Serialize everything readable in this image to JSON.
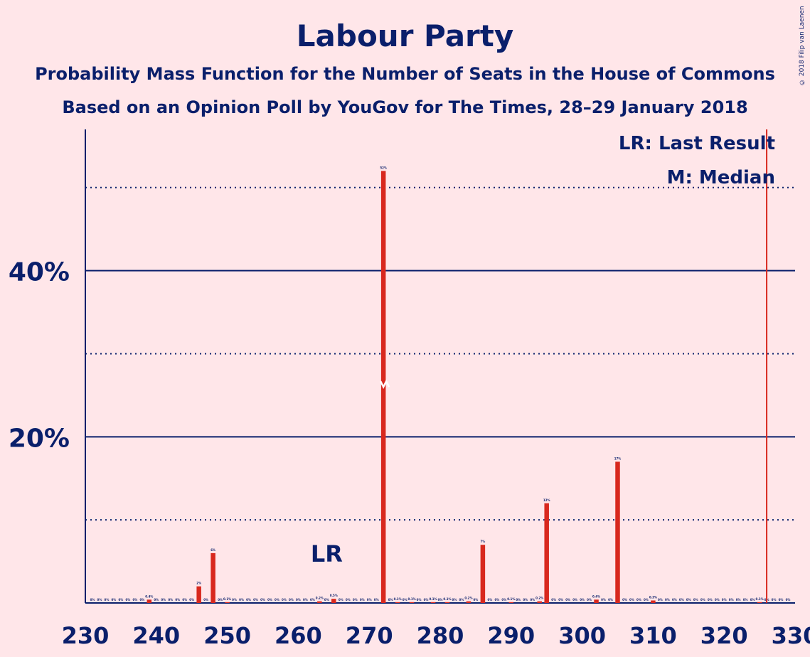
{
  "title": "Labour Party",
  "subtitle1": "Probability Mass Function for the Number of Seats in the House of Commons",
  "subtitle2": "Based on an Opinion Poll by YouGov for The Times, 28–29 January 2018",
  "copyright": "© 2018 Filip van Laenen",
  "legend": {
    "lr": "LR: Last Result",
    "m": "M: Median"
  },
  "colors": {
    "background": "#ffe6e9",
    "bar": "#d8281e",
    "axis": "#0a1f6b",
    "last_result_line": "#d8281e"
  },
  "chart_data": {
    "type": "bar",
    "xlim": [
      230,
      330
    ],
    "ylim": [
      0,
      57
    ],
    "x_ticks": [
      230,
      240,
      250,
      260,
      270,
      280,
      290,
      300,
      310,
      320,
      330
    ],
    "y_ticks_major": [
      20,
      40
    ],
    "y_tick_labels": [
      "20%",
      "40%"
    ],
    "y_ticks_minor": [
      10,
      30,
      50
    ],
    "last_result": 262,
    "last_result_label": "LR",
    "median": 272,
    "majority_line": 326,
    "seats": [
      239,
      246,
      248,
      250,
      263,
      265,
      272,
      274,
      276,
      279,
      281,
      284,
      286,
      290,
      294,
      295,
      302,
      305,
      310,
      325
    ],
    "values": [
      0.4,
      2,
      6,
      0.1,
      0.2,
      0.5,
      52,
      0.1,
      0.1,
      0.1,
      0.1,
      0.2,
      7,
      0.1,
      0.2,
      12,
      0.4,
      17,
      0.3,
      0.1
    ],
    "labels": [
      "0.4%",
      "2%",
      "6%",
      "0.1%",
      "0.2%",
      "0.5%",
      "52%",
      "0.1%",
      "0.1%",
      "0.1%",
      "0.1%",
      "0.2%",
      "7%",
      "0.1%",
      "0.2%",
      "12%",
      "0.4%",
      "17%",
      "0.3%",
      "0.1%"
    ]
  }
}
